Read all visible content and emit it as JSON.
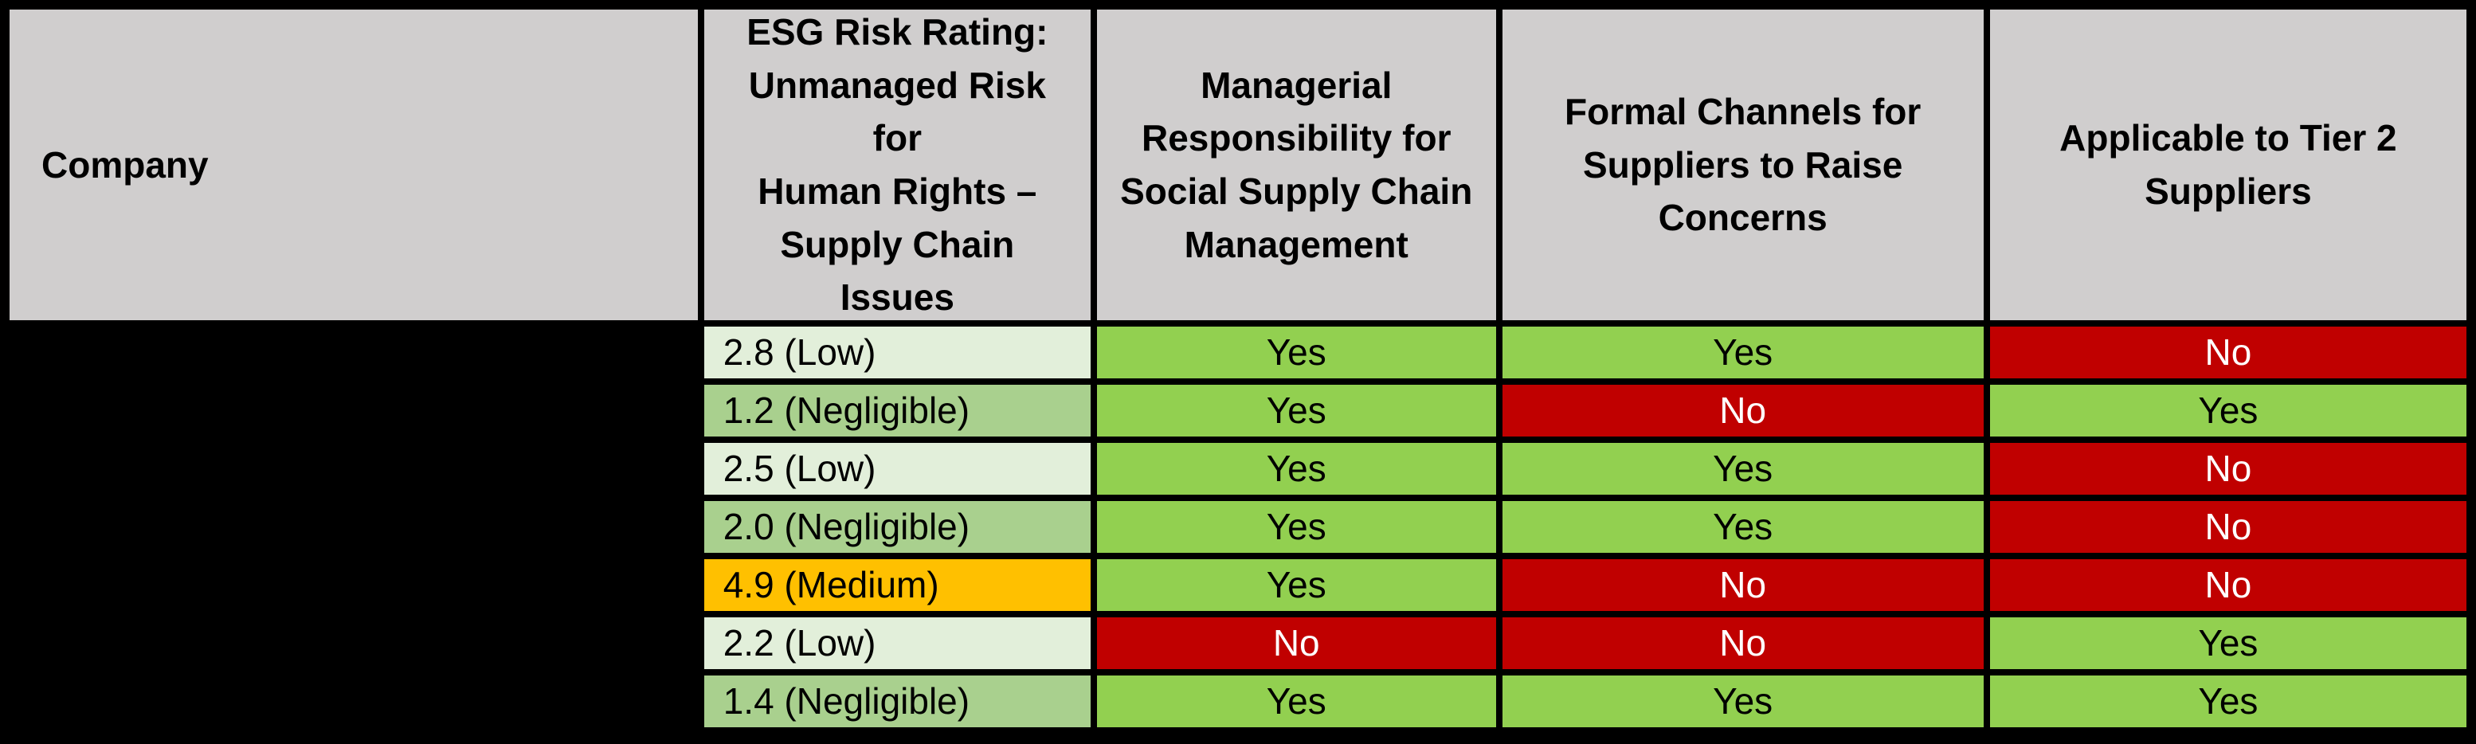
{
  "table": {
    "title": "ESG supply chain comparison table",
    "company_cells_redacted": true,
    "columns": [
      {
        "label": "Company"
      },
      {
        "label": "ESG Risk Rating:\nUnmanaged Risk for\nHuman Rights –\nSupply Chain Issues"
      },
      {
        "label": "Managerial\nResponsibility for\nSocial Supply Chain\nManagement"
      },
      {
        "label": "Formal Channels for\nSuppliers to Raise\nConcerns"
      },
      {
        "label": "Applicable to Tier 2\nSuppliers"
      }
    ],
    "rows": [
      {
        "company": "",
        "esg_rating": "2.8 (Low)",
        "esg_level": "Low",
        "managerial_responsibility": "Yes",
        "formal_channels": "Yes",
        "applicable_tier2": "No"
      },
      {
        "company": "",
        "esg_rating": "1.2 (Negligible)",
        "esg_level": "Negligible",
        "managerial_responsibility": "Yes",
        "formal_channels": "No",
        "applicable_tier2": "Yes"
      },
      {
        "company": "",
        "esg_rating": "2.5 (Low)",
        "esg_level": "Low",
        "managerial_responsibility": "Yes",
        "formal_channels": "Yes",
        "applicable_tier2": "No"
      },
      {
        "company": "",
        "esg_rating": "2.0 (Negligible)",
        "esg_level": "Negligible",
        "managerial_responsibility": "Yes",
        "formal_channels": "Yes",
        "applicable_tier2": "No"
      },
      {
        "company": "",
        "esg_rating": "4.9 (Medium)",
        "esg_level": "Medium",
        "managerial_responsibility": "Yes",
        "formal_channels": "No",
        "applicable_tier2": "No"
      },
      {
        "company": "",
        "esg_rating": "2.2 (Low)",
        "esg_level": "Low",
        "managerial_responsibility": "No",
        "formal_channels": "No",
        "applicable_tier2": "Yes"
      },
      {
        "company": "",
        "esg_rating": "1.4 (Negligible)",
        "esg_level": "Negligible",
        "managerial_responsibility": "Yes",
        "formal_channels": "Yes",
        "applicable_tier2": "Yes"
      }
    ]
  },
  "colors": {
    "background": "#000000",
    "header_bg": "#d0cece",
    "esg_low_bg": "#e2efda",
    "esg_negligible_bg": "#a9d08e",
    "esg_medium_bg": "#ffc000",
    "yes_bg": "#92d050",
    "no_bg": "#c00000",
    "no_text": "#ffffff",
    "text": "#000000"
  },
  "chart_data": {
    "type": "table",
    "title": "",
    "columns": [
      "Company",
      "ESG Risk Rating: Unmanaged Risk for Human Rights – Supply Chain Issues",
      "Managerial Responsibility for Social Supply Chain Management",
      "Formal Channels for Suppliers to Raise Concerns",
      "Applicable to Tier 2 Suppliers"
    ],
    "rows": [
      [
        "",
        "2.8 (Low)",
        "Yes",
        "Yes",
        "No"
      ],
      [
        "",
        "1.2 (Negligible)",
        "Yes",
        "No",
        "Yes"
      ],
      [
        "",
        "2.5 (Low)",
        "Yes",
        "Yes",
        "No"
      ],
      [
        "",
        "2.0 (Negligible)",
        "Yes",
        "Yes",
        "No"
      ],
      [
        "",
        "4.9 (Medium)",
        "Yes",
        "No",
        "No"
      ],
      [
        "",
        "2.2 (Low)",
        "No",
        "No",
        "Yes"
      ],
      [
        "",
        "1.4 (Negligible)",
        "Yes",
        "Yes",
        "Yes"
      ]
    ],
    "cell_color_legend": {
      "Low": "#e2efda",
      "Negligible": "#a9d08e",
      "Medium": "#ffc000",
      "Yes": "#92d050",
      "No": "#c00000"
    }
  }
}
